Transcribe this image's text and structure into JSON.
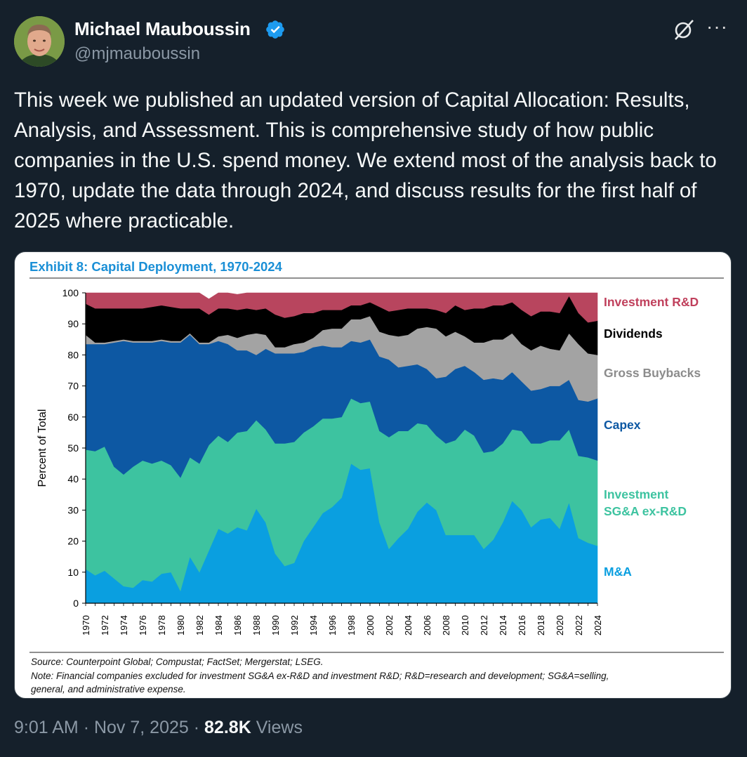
{
  "author": {
    "name": "Michael Mauboussin",
    "handle": "@mjmauboussin",
    "verified_icon": "verified-badge-icon"
  },
  "header_icons": [
    "grok-icon",
    "more-icon"
  ],
  "tweet": {
    "text": "This week we published an updated version of Capital Allocation: Results, Analysis, and Assessment. This is comprehensive study of how public companies in the U.S. spend money. We extend most of the analysis back to 1970, update the data through 2024, and discuss results for the first half of 2025 where practicable."
  },
  "footer": {
    "time": "9:01 AM",
    "date": "Nov 7, 2025",
    "separator": "·",
    "views_count": "82.8K",
    "views_label": "Views"
  },
  "colors": {
    "background": "#15202b",
    "accent_blue": "#1d9bf0",
    "muted_text": "#8b98a5"
  },
  "chart_data": {
    "type": "area",
    "stacked": true,
    "title": "Exhibit 8: Capital Deployment, 1970-2024",
    "ylabel": "Percent of Total",
    "xlabel": "",
    "ylim": [
      0,
      100
    ],
    "yticks": [
      0,
      10,
      20,
      30,
      40,
      50,
      60,
      70,
      80,
      90,
      100
    ],
    "x": [
      1970,
      1971,
      1972,
      1973,
      1974,
      1975,
      1976,
      1977,
      1978,
      1979,
      1980,
      1981,
      1982,
      1983,
      1984,
      1985,
      1986,
      1987,
      1988,
      1989,
      1990,
      1991,
      1992,
      1993,
      1994,
      1995,
      1996,
      1997,
      1998,
      1999,
      2000,
      2001,
      2002,
      2003,
      2004,
      2005,
      2006,
      2007,
      2008,
      2009,
      2010,
      2011,
      2012,
      2013,
      2014,
      2015,
      2016,
      2017,
      2018,
      2019,
      2020,
      2021,
      2022,
      2023,
      2024
    ],
    "legend_placement": "right",
    "series": [
      {
        "name": "M&A",
        "color": "#0a9fe0",
        "values": [
          11,
          9,
          10.5,
          8,
          5.5,
          5,
          7.5,
          7,
          9.5,
          10,
          4,
          15,
          10,
          17,
          24,
          22.5,
          24.5,
          23.5,
          30.5,
          26,
          16,
          12,
          13,
          20,
          24.5,
          29,
          31,
          34,
          45,
          43,
          43.5,
          26,
          17.5,
          21,
          24,
          29.5,
          32.5,
          30,
          22,
          22,
          22,
          22,
          17.5,
          20.5,
          26,
          33,
          30,
          24.5,
          27,
          27.5,
          24,
          32.5,
          21,
          19.5,
          18.5
        ]
      },
      {
        "name": "Investment SG&A ex-R&D",
        "color": "#3dc3a0",
        "values": [
          38.5,
          40,
          40,
          36,
          36,
          39,
          38.5,
          38,
          36.5,
          34.5,
          36.5,
          32,
          35,
          34,
          30,
          29.5,
          30.5,
          32,
          28.5,
          30,
          35.5,
          39.5,
          39,
          35,
          32.5,
          30.5,
          28.5,
          26,
          21,
          21.5,
          21.5,
          29.5,
          36,
          34.5,
          31.5,
          28.5,
          25,
          24,
          29.5,
          30.5,
          34,
          32,
          31,
          28.5,
          25.5,
          23,
          25.5,
          27,
          24.5,
          25,
          28.5,
          23.5,
          26.5,
          27.5,
          27.5
        ]
      },
      {
        "name": "Capex",
        "color": "#0d58a3",
        "values": [
          34,
          34.5,
          33,
          40,
          43,
          40,
          38,
          39,
          38.5,
          39.5,
          43.5,
          39.5,
          38.5,
          32.5,
          30.5,
          31.5,
          26.5,
          26,
          21,
          26,
          29,
          29,
          28.5,
          26,
          25.5,
          23.5,
          23,
          22.5,
          18.5,
          19.5,
          20,
          24,
          25,
          20.5,
          21,
          19,
          18,
          18.5,
          21.5,
          23,
          20.5,
          20.5,
          23.5,
          23.5,
          20.5,
          18.5,
          16,
          17,
          17.5,
          17.5,
          17.5,
          16,
          18,
          18,
          20
        ]
      },
      {
        "name": "Gross Buybacks",
        "color": "#a3a3a3",
        "values": [
          3,
          0.5,
          0.5,
          0.5,
          0.5,
          0.5,
          0.5,
          0.5,
          0.5,
          0.5,
          0.5,
          0.5,
          0.5,
          0.5,
          1.5,
          3,
          4,
          5,
          7,
          4.5,
          2,
          2,
          3,
          3,
          3,
          5,
          6,
          6,
          7,
          7.5,
          7.5,
          8,
          8,
          10,
          10,
          11.5,
          13.5,
          16,
          13,
          12,
          9.5,
          9.5,
          12,
          12.5,
          13,
          12.5,
          12,
          13,
          14,
          12,
          11.5,
          15,
          18,
          15.5,
          14
        ]
      },
      {
        "name": "Dividends",
        "color": "#000000",
        "values": [
          10,
          11,
          11,
          10.5,
          10,
          10.5,
          10.5,
          11,
          11,
          11,
          10.5,
          8,
          11,
          9,
          9,
          8.5,
          9,
          8.5,
          7.5,
          8.5,
          10.5,
          9.5,
          9,
          9.5,
          8,
          6.5,
          6,
          6,
          4.5,
          4.5,
          4.5,
          8,
          7.5,
          8.5,
          8.5,
          6.5,
          6,
          6,
          7.5,
          8.5,
          8.5,
          11,
          11,
          11,
          11,
          10,
          11,
          11,
          11,
          12,
          12,
          12,
          10,
          10,
          11
        ]
      },
      {
        "name": "Investment R&D",
        "color": "#b8455e",
        "values": [
          3.5,
          5,
          5,
          5,
          5,
          5,
          5,
          4.5,
          4.5,
          4.5,
          5,
          5,
          5,
          5,
          5,
          5,
          5,
          5,
          5.5,
          5,
          7,
          8,
          7.5,
          6.5,
          6.5,
          5.5,
          5.5,
          5.5,
          4,
          4,
          3,
          4.5,
          6,
          5.5,
          5,
          5,
          5,
          5.5,
          6.5,
          4,
          5.5,
          5,
          5,
          4,
          4,
          3,
          5.5,
          7.5,
          6,
          6,
          6.5,
          1,
          6.5,
          9.5,
          9
        ]
      }
    ],
    "source": "Source: Counterpoint Global; Compustat; FactSet; Mergerstat; LSEG.",
    "note": "Note: Financial companies excluded for investment SG&A ex-R&D and investment R&D; R&D=research and development; SG&A=selling, general, and administrative expense.",
    "legend_labels": [
      {
        "text": "Investment R&D",
        "color": "#c0405c"
      },
      {
        "text": "Dividends",
        "color": "#000000"
      },
      {
        "text": "Gross Buybacks",
        "color": "#8c8c8c"
      },
      {
        "text": "Capex",
        "color": "#0d58a3"
      },
      {
        "text": "Investment",
        "color": "#3dc3a0"
      },
      {
        "text": "SG&A ex-R&D",
        "color": "#3dc3a0"
      },
      {
        "text": "M&A",
        "color": "#0a9fe0"
      }
    ]
  }
}
